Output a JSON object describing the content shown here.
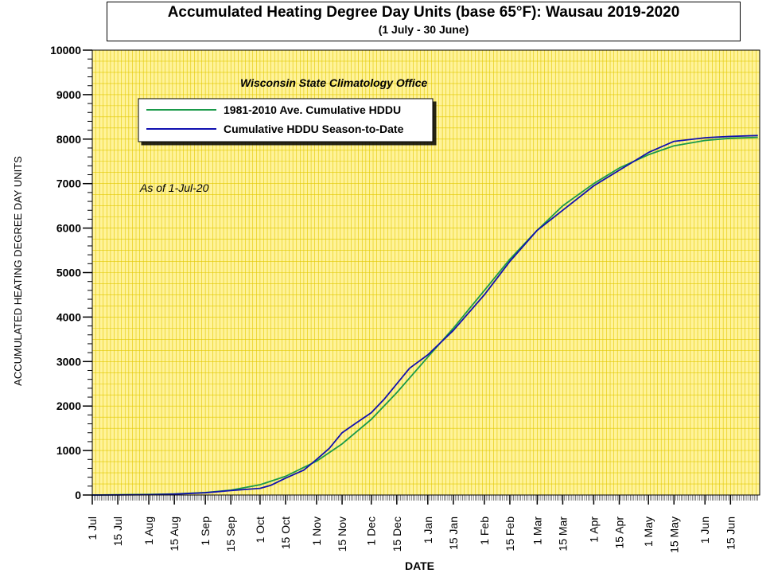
{
  "header": {
    "title": "Accumulated Heating Degree Day Units (base 65°F): Wausau 2019-2020",
    "subtitle": "(1 July - 30 June)"
  },
  "annotations": {
    "office": "Wisconsin State Climatology Office",
    "as_of": "As of 1-Jul-20"
  },
  "colors": {
    "plot_background": "#FFF399",
    "grid": "#E2C800",
    "normal_line": "#1A9A4A",
    "season_line": "#1010B0"
  },
  "chart_data": {
    "type": "line",
    "title": "Accumulated Heating Degree Day Units (base 65°F): Wausau 2019-2020",
    "subtitle": "(1 July - 30 June)",
    "xlabel": "DATE",
    "ylabel": "ACCUMULATED HEATING DEGREE DAY UNITS",
    "ylim": [
      0,
      10000
    ],
    "yticks": [
      0,
      1000,
      2000,
      3000,
      4000,
      5000,
      6000,
      7000,
      8000,
      9000,
      10000
    ],
    "xlim": [
      "2019-07-01",
      "2020-06-30"
    ],
    "xticks": [
      {
        "date": "2019-07-01",
        "label": "1 Jul"
      },
      {
        "date": "2019-07-15",
        "label": "15 Jul"
      },
      {
        "date": "2019-08-01",
        "label": "1 Aug"
      },
      {
        "date": "2019-08-15",
        "label": "15 Aug"
      },
      {
        "date": "2019-09-01",
        "label": "1 Sep"
      },
      {
        "date": "2019-09-15",
        "label": "15 Sep"
      },
      {
        "date": "2019-10-01",
        "label": "1 Oct"
      },
      {
        "date": "2019-10-15",
        "label": "15 Oct"
      },
      {
        "date": "2019-11-01",
        "label": "1 Nov"
      },
      {
        "date": "2019-11-15",
        "label": "15 Nov"
      },
      {
        "date": "2019-12-01",
        "label": "1 Dec"
      },
      {
        "date": "2019-12-15",
        "label": "15 Dec"
      },
      {
        "date": "2020-01-01",
        "label": "1 Jan"
      },
      {
        "date": "2020-01-15",
        "label": "15 Jan"
      },
      {
        "date": "2020-02-01",
        "label": "1 Feb"
      },
      {
        "date": "2020-02-15",
        "label": "15 Feb"
      },
      {
        "date": "2020-03-01",
        "label": "1 Mar"
      },
      {
        "date": "2020-03-15",
        "label": "15 Mar"
      },
      {
        "date": "2020-04-01",
        "label": "1 Apr"
      },
      {
        "date": "2020-04-15",
        "label": "15 Apr"
      },
      {
        "date": "2020-05-01",
        "label": "1 May"
      },
      {
        "date": "2020-05-15",
        "label": "15 May"
      },
      {
        "date": "2020-06-01",
        "label": "1 Jun"
      },
      {
        "date": "2020-06-15",
        "label": "15 Jun"
      }
    ],
    "grid": true,
    "legend_position": "top-left",
    "series": [
      {
        "name": "1981-2010 Ave. Cumulative HDDU",
        "color": "#1A9A4A",
        "points": [
          [
            "2019-07-01",
            0
          ],
          [
            "2019-07-15",
            5
          ],
          [
            "2019-08-01",
            12
          ],
          [
            "2019-08-15",
            25
          ],
          [
            "2019-09-01",
            55
          ],
          [
            "2019-09-15",
            110
          ],
          [
            "2019-10-01",
            230
          ],
          [
            "2019-10-15",
            420
          ],
          [
            "2019-11-01",
            760
          ],
          [
            "2019-11-15",
            1150
          ],
          [
            "2019-12-01",
            1700
          ],
          [
            "2019-12-15",
            2300
          ],
          [
            "2020-01-01",
            3100
          ],
          [
            "2020-01-15",
            3750
          ],
          [
            "2020-02-01",
            4600
          ],
          [
            "2020-02-15",
            5300
          ],
          [
            "2020-03-01",
            5950
          ],
          [
            "2020-03-15",
            6500
          ],
          [
            "2020-04-01",
            7000
          ],
          [
            "2020-04-15",
            7350
          ],
          [
            "2020-05-01",
            7650
          ],
          [
            "2020-05-15",
            7850
          ],
          [
            "2020-06-01",
            7970
          ],
          [
            "2020-06-15",
            8020
          ],
          [
            "2020-06-30",
            8040
          ]
        ]
      },
      {
        "name": "Cumulative HDDU Season-to-Date",
        "color": "#1010B0",
        "points": [
          [
            "2019-07-01",
            0
          ],
          [
            "2019-07-15",
            2
          ],
          [
            "2019-08-01",
            8
          ],
          [
            "2019-08-15",
            20
          ],
          [
            "2019-09-01",
            50
          ],
          [
            "2019-09-15",
            100
          ],
          [
            "2019-10-01",
            150
          ],
          [
            "2019-10-07",
            220
          ],
          [
            "2019-10-15",
            380
          ],
          [
            "2019-10-25",
            560
          ],
          [
            "2019-11-01",
            800
          ],
          [
            "2019-11-08",
            1050
          ],
          [
            "2019-11-15",
            1400
          ],
          [
            "2019-11-22",
            1600
          ],
          [
            "2019-12-01",
            1850
          ],
          [
            "2019-12-08",
            2150
          ],
          [
            "2019-12-15",
            2500
          ],
          [
            "2019-12-22",
            2850
          ],
          [
            "2020-01-01",
            3150
          ],
          [
            "2020-01-15",
            3700
          ],
          [
            "2020-02-01",
            4500
          ],
          [
            "2020-02-15",
            5250
          ],
          [
            "2020-03-01",
            5950
          ],
          [
            "2020-03-15",
            6400
          ],
          [
            "2020-04-01",
            6950
          ],
          [
            "2020-04-15",
            7300
          ],
          [
            "2020-05-01",
            7700
          ],
          [
            "2020-05-15",
            7950
          ],
          [
            "2020-06-01",
            8030
          ],
          [
            "2020-06-15",
            8060
          ],
          [
            "2020-06-30",
            8080
          ]
        ]
      }
    ]
  }
}
